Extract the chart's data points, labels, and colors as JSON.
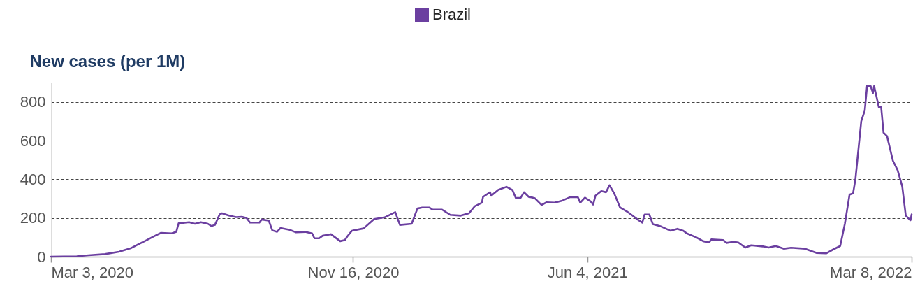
{
  "chart_data": {
    "type": "line",
    "ylabel": "New cases (per 1M)",
    "x": [
      "2020-03-03",
      "2020-03-25",
      "2020-04-04",
      "2020-04-18",
      "2020-04-30",
      "2020-05-10",
      "2020-05-16",
      "2020-05-22",
      "2020-05-30",
      "2020-06-05",
      "2020-06-14",
      "2020-06-18",
      "2020-06-20",
      "2020-06-29",
      "2020-07-04",
      "2020-07-09",
      "2020-07-15",
      "2020-07-18",
      "2020-07-21",
      "2020-07-25",
      "2020-07-27",
      "2020-08-02",
      "2020-08-08",
      "2020-08-13",
      "2020-08-17",
      "2020-08-20",
      "2020-08-28",
      "2020-08-30",
      "2020-09-05",
      "2020-09-08",
      "2020-09-12",
      "2020-09-15",
      "2020-09-23",
      "2020-09-28",
      "2020-10-06",
      "2020-10-12",
      "2020-10-14",
      "2020-10-18",
      "2020-10-21",
      "2020-10-28",
      "2020-11-01",
      "2020-11-05",
      "2020-11-09",
      "2020-11-11",
      "2020-11-15",
      "2020-11-25",
      "2020-12-04",
      "2020-12-13",
      "2020-12-22",
      "2020-12-26",
      "2021-01-05",
      "2021-01-10",
      "2021-01-14",
      "2021-01-20",
      "2021-01-23",
      "2021-01-31",
      "2021-02-07",
      "2021-02-16",
      "2021-02-23",
      "2021-02-28",
      "2021-03-06",
      "2021-03-07",
      "2021-03-13",
      "2021-03-14",
      "2021-03-20",
      "2021-03-27",
      "2021-04-01",
      "2021-04-04",
      "2021-04-08",
      "2021-04-11",
      "2021-04-15",
      "2021-04-20",
      "2021-04-26",
      "2021-04-30",
      "2021-05-07",
      "2021-05-13",
      "2021-05-20",
      "2021-05-27",
      "2021-05-29",
      "2021-06-02",
      "2021-06-07",
      "2021-06-09",
      "2021-06-11",
      "2021-06-16",
      "2021-06-20",
      "2021-06-23",
      "2021-06-27",
      "2021-07-02",
      "2021-07-08",
      "2021-07-14",
      "2021-07-17",
      "2021-07-21",
      "2021-07-23",
      "2021-07-27",
      "2021-07-30",
      "2021-08-06",
      "2021-08-14",
      "2021-08-20",
      "2021-08-25",
      "2021-08-28",
      "2021-09-05",
      "2021-09-11",
      "2021-09-16",
      "2021-09-18",
      "2021-09-28",
      "2021-10-01",
      "2021-10-07",
      "2021-10-11",
      "2021-10-17",
      "2021-10-22",
      "2021-11-01",
      "2021-11-06",
      "2021-11-12",
      "2021-11-19",
      "2021-11-25",
      "2021-12-07",
      "2021-12-17",
      "2021-12-25",
      "2021-12-31",
      "2022-01-06",
      "2022-01-10",
      "2022-01-14",
      "2022-01-17",
      "2022-01-19",
      "2022-01-24",
      "2022-01-27",
      "2022-01-29",
      "2022-02-01",
      "2022-02-03",
      "2022-02-04",
      "2022-02-08",
      "2022-02-10",
      "2022-02-12",
      "2022-02-15",
      "2022-02-20",
      "2022-02-24",
      "2022-02-28",
      "2022-03-03",
      "2022-03-07",
      "2022-03-08"
    ],
    "series": [
      {
        "name": "Brazil",
        "color": "#6b3fa0",
        "values": [
          0,
          2,
          7,
          13,
          25,
          43,
          62,
          80,
          105,
          123,
          120,
          128,
          172,
          178,
          170,
          178,
          170,
          158,
          164,
          218,
          224,
          212,
          204,
          206,
          200,
          176,
          176,
          192,
          186,
          136,
          128,
          148,
          138,
          126,
          128,
          120,
          95,
          95,
          108,
          116,
          98,
          80,
          86,
          104,
          134,
          146,
          194,
          203,
          230,
          164,
          170,
          249,
          254,
          254,
          243,
          243,
          216,
          212,
          224,
          261,
          279,
          309,
          333,
          315,
          345,
          361,
          345,
          303,
          303,
          333,
          309,
          303,
          267,
          281,
          279,
          288,
          307,
          307,
          279,
          305,
          285,
          269,
          315,
          339,
          333,
          369,
          327,
          254,
          233,
          206,
          192,
          176,
          218,
          218,
          168,
          156,
          134,
          144,
          134,
          120,
          100,
          80,
          73,
          89,
          86,
          71,
          77,
          73,
          47,
          59,
          53,
          47,
          55,
          41,
          46,
          41,
          19,
          17,
          37,
          55,
          170,
          321,
          327,
          399,
          701,
          755,
          884,
          882,
          846,
          882,
          773,
          773,
          641,
          623,
          496,
          448,
          363,
          212,
          188,
          218
        ]
      }
    ],
    "xlim": [
      "2020-03-03",
      "2022-03-08"
    ],
    "xticks": [
      {
        "value": "2020-03-03",
        "label": "Mar 3, 2020"
      },
      {
        "value": "2020-11-16",
        "label": "Nov 16, 2020"
      },
      {
        "value": "2021-06-04",
        "label": "Jun 4, 2021"
      },
      {
        "value": "2022-03-08",
        "label": "Mar 8, 2022"
      }
    ],
    "ylim": [
      0,
      900
    ],
    "yticks": [
      0,
      200,
      400,
      600,
      800
    ],
    "grid": "y",
    "legend": "top",
    "line_style": "solid"
  }
}
